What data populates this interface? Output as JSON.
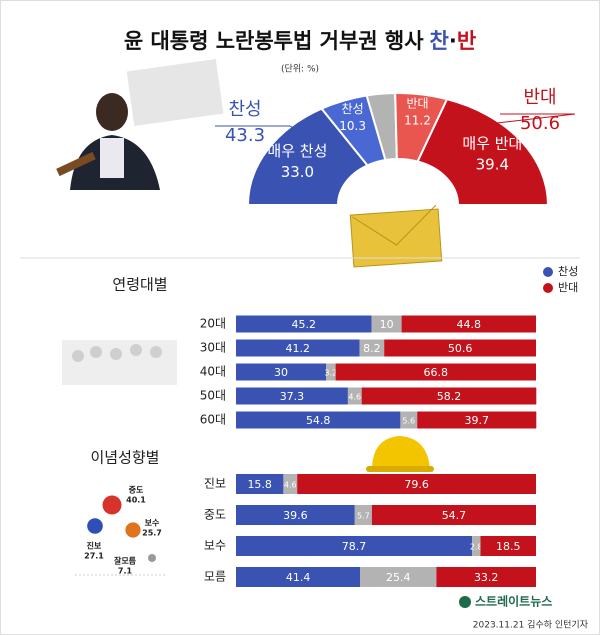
{
  "title_parts": {
    "main": "윤 대통령 노란봉투법 거부권 행사",
    "pro": "찬",
    "sep": "·",
    "con": "반"
  },
  "unit": "(단위: %)",
  "footer": {
    "logo": "스트레이트뉴스",
    "credit": "2023.11.21 김수하 인턴기자"
  },
  "chart_data": [
    {
      "type": "pie",
      "half": true,
      "categories": [
        "매우 찬성",
        "찬성",
        null,
        "반대",
        "매우 반대"
      ],
      "values": [
        33.0,
        10.3,
        6.1,
        11.2,
        39.4
      ],
      "value_labels": [
        "33.0",
        "10.3",
        null,
        "11.2",
        "39.4"
      ],
      "colors": [
        "#3a53b3",
        "#4a68d4",
        "#b3b3b3",
        "#e8564f",
        "#c4121c"
      ],
      "annotations": [
        {
          "text": "찬성",
          "value": 43.3,
          "color": "#3a53b3"
        },
        {
          "text": "반대",
          "value": 50.6,
          "color": "#c4121c"
        }
      ]
    },
    {
      "type": "bar",
      "orientation": "horizontal",
      "stacked": true,
      "title": "연령대별",
      "legend": true,
      "categories": [
        "20대",
        "30대",
        "40대",
        "50대",
        "60대"
      ],
      "series": [
        {
          "name": "찬성",
          "color": "#3a53b3",
          "values": [
            45.2,
            41.2,
            30,
            37.3,
            54.8
          ]
        },
        {
          "name": null,
          "color": "#b3b3b3",
          "values": [
            10,
            8.2,
            3.2,
            4.6,
            5.6
          ]
        },
        {
          "name": "반대",
          "color": "#c4121c",
          "values": [
            44.8,
            50.6,
            66.8,
            58.2,
            39.7
          ]
        }
      ],
      "xlim": [
        0,
        100
      ]
    },
    {
      "type": "bar",
      "orientation": "horizontal",
      "stacked": true,
      "title": "이념성향별",
      "legend": false,
      "categories": [
        "진보",
        "중도",
        "보수",
        "모름"
      ],
      "series": [
        {
          "name": "찬성",
          "color": "#3a53b3",
          "values": [
            15.8,
            39.6,
            78.7,
            41.4
          ]
        },
        {
          "name": null,
          "color": "#b3b3b3",
          "values": [
            4.6,
            5.7,
            2.8,
            25.4
          ]
        },
        {
          "name": "반대",
          "color": "#c4121c",
          "values": [
            79.6,
            54.7,
            18.5,
            33.2
          ]
        }
      ],
      "xlim": [
        0,
        100
      ]
    },
    {
      "type": "bubble",
      "categories": [
        "중도",
        "보수",
        "진보",
        "잘모름"
      ],
      "values": [
        40.1,
        25.7,
        27.1,
        7.1
      ],
      "colors": [
        "#d8332a",
        "#e0731c",
        "#2f4fb5",
        "#9a9a9a"
      ]
    }
  ]
}
